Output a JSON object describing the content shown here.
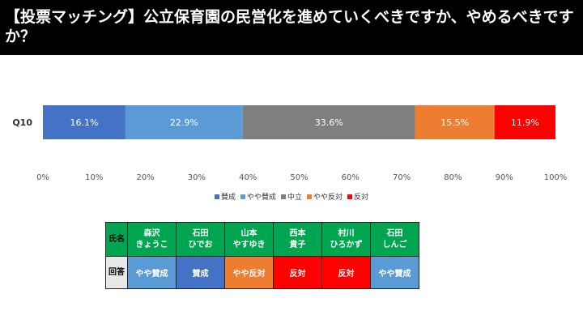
{
  "title": "【投票マッチング】公立保育園の民営化を進めていくべきですか、やめるべきですか？",
  "chart_data": {
    "type": "bar",
    "orientation": "horizontal-stacked",
    "categories": [
      "Q10"
    ],
    "series": [
      {
        "name": "賛成",
        "values": [
          16.1
        ],
        "label": "16.1%",
        "color": "#4472c4"
      },
      {
        "name": "やや賛成",
        "values": [
          22.9
        ],
        "label": "22.9%",
        "color": "#5b9bd5"
      },
      {
        "name": "中立",
        "values": [
          33.6
        ],
        "label": "33.6%",
        "color": "#7f7f7f"
      },
      {
        "name": "やや反対",
        "values": [
          15.5
        ],
        "label": "15.5%",
        "color": "#ed7d31"
      },
      {
        "name": "反対",
        "values": [
          11.9
        ],
        "label": "11.9%",
        "color": "#ff0000"
      }
    ],
    "xlim": [
      0,
      100
    ],
    "xticks": [
      "0%",
      "10%",
      "20%",
      "30%",
      "40%",
      "50%",
      "60%",
      "70%",
      "80%",
      "90%",
      "100%"
    ],
    "legend": "bottom"
  },
  "table": {
    "row_header_name": "氏名",
    "row_header_answer": "回答",
    "candidates": [
      {
        "name1": "森沢",
        "name2": "きょうこ",
        "answer": "やや賛成",
        "color": "#5b9bd5"
      },
      {
        "name1": "石田",
        "name2": "ひでお",
        "answer": "賛成",
        "color": "#4472c4"
      },
      {
        "name1": "山本",
        "name2": "やすゆき",
        "answer": "やや反対",
        "color": "#ed7d31"
      },
      {
        "name1": "西本",
        "name2": "貴子",
        "answer": "反対",
        "color": "#ff0000"
      },
      {
        "name1": "村川",
        "name2": "ひろかず",
        "answer": "反対",
        "color": "#ff0000"
      },
      {
        "name1": "石田",
        "name2": "しんご",
        "answer": "やや賛成",
        "color": "#5b9bd5"
      }
    ]
  }
}
